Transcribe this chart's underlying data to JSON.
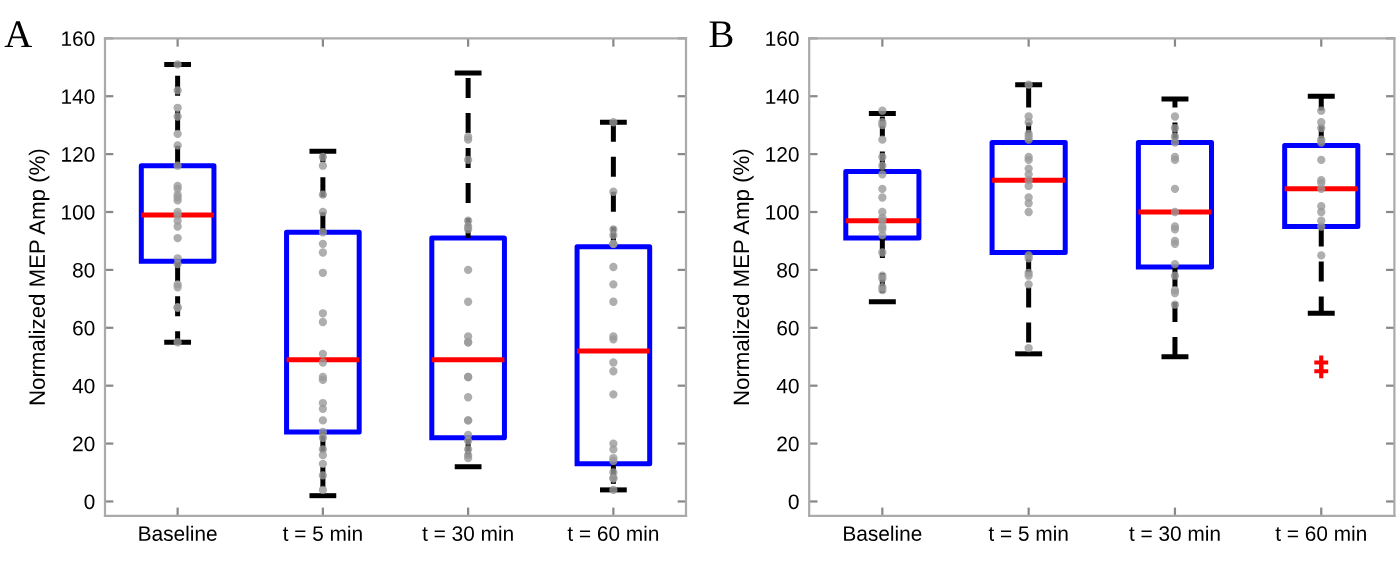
{
  "chart_data": [
    {
      "type": "box",
      "title": "A",
      "ylabel": "Normalized MEP Amp (%)",
      "categories": [
        "Baseline",
        "t = 5 min",
        "t = 30 min",
        "t = 60 min"
      ],
      "boxes": [
        {
          "low": 55,
          "q1": 83,
          "median": 99,
          "q3": 116,
          "high": 151
        },
        {
          "low": 2,
          "q1": 24,
          "median": 49,
          "q3": 93,
          "high": 121
        },
        {
          "low": 12,
          "q1": 22,
          "median": 49,
          "q3": 91,
          "high": 148
        },
        {
          "low": 4,
          "q1": 13,
          "median": 52,
          "q3": 88,
          "high": 131
        }
      ],
      "series": [
        {
          "type": "scatter",
          "color": "#9a9a9a",
          "x": [
            "Baseline",
            "Baseline",
            "Baseline",
            "Baseline",
            "Baseline",
            "Baseline",
            "Baseline",
            "Baseline",
            "Baseline",
            "Baseline",
            "Baseline",
            "Baseline",
            "Baseline",
            "Baseline",
            "Baseline",
            "Baseline",
            "Baseline",
            "Baseline",
            "Baseline",
            "Baseline",
            "Baseline",
            "Baseline",
            "Baseline",
            "Baseline",
            "t = 5 min",
            "t = 5 min",
            "t = 5 min",
            "t = 5 min",
            "t = 5 min",
            "t = 5 min",
            "t = 5 min",
            "t = 5 min",
            "t = 5 min",
            "t = 5 min",
            "t = 5 min",
            "t = 5 min",
            "t = 5 min",
            "t = 5 min",
            "t = 5 min",
            "t = 5 min",
            "t = 5 min",
            "t = 5 min",
            "t = 5 min",
            "t = 5 min",
            "t = 5 min",
            "t = 5 min",
            "t = 5 min",
            "t = 5 min",
            "t = 30 min",
            "t = 30 min",
            "t = 30 min",
            "t = 30 min",
            "t = 30 min",
            "t = 30 min",
            "t = 30 min",
            "t = 30 min",
            "t = 30 min",
            "t = 30 min",
            "t = 30 min",
            "t = 30 min",
            "t = 30 min",
            "t = 30 min",
            "t = 30 min",
            "t = 30 min",
            "t = 30 min",
            "t = 30 min",
            "t = 30 min",
            "t = 30 min",
            "t = 30 min",
            "t = 60 min",
            "t = 60 min",
            "t = 60 min",
            "t = 60 min",
            "t = 60 min",
            "t = 60 min",
            "t = 60 min",
            "t = 60 min",
            "t = 60 min",
            "t = 60 min",
            "t = 60 min",
            "t = 60 min",
            "t = 60 min",
            "t = 60 min",
            "t = 60 min",
            "t = 60 min",
            "t = 60 min",
            "t = 60 min",
            "t = 60 min",
            "t = 60 min",
            "t = 60 min",
            "t = 60 min"
          ],
          "values": [
            151,
            142,
            136,
            133,
            127,
            123,
            116,
            109,
            108,
            106,
            105,
            104,
            100,
            99,
            97,
            95,
            91,
            84,
            82,
            75,
            74,
            67,
            67,
            55,
            119,
            116,
            106,
            100,
            93,
            89,
            86,
            79,
            65,
            62,
            51,
            48,
            43,
            42,
            34,
            32,
            28,
            24,
            22,
            18,
            16,
            13,
            9,
            4,
            126,
            125,
            118,
            97,
            95,
            94,
            80,
            69,
            57,
            55,
            55,
            43,
            43,
            36,
            28,
            28,
            23,
            21,
            18,
            16,
            15,
            131,
            107,
            94,
            92,
            89,
            89,
            81,
            75,
            69,
            57,
            56,
            48,
            45,
            37,
            20,
            18,
            15,
            14,
            10,
            8,
            8,
            4
          ]
        }
      ],
      "ylim": [
        -5,
        160
      ],
      "yticks": [
        0,
        20,
        40,
        60,
        80,
        100,
        120,
        140,
        160
      ],
      "marker": "circle"
    },
    {
      "type": "box",
      "title": "B",
      "ylabel": "Normalized MEP Amp (%)",
      "categories": [
        "Baseline",
        "t = 5 min",
        "t = 30 min",
        "t = 60 min"
      ],
      "boxes": [
        {
          "low": 69,
          "q1": 91,
          "median": 97,
          "q3": 114,
          "high": 134
        },
        {
          "low": 51,
          "q1": 86,
          "median": 111,
          "q3": 124,
          "high": 144
        },
        {
          "low": 50,
          "q1": 81,
          "median": 100,
          "q3": 124,
          "high": 139
        },
        {
          "low": 65,
          "q1": 95,
          "median": 108,
          "q3": 123,
          "high": 140,
          "outliers": [
            48,
            45
          ]
        }
      ],
      "series": [
        {
          "type": "scatter",
          "color": "#9a9a9a",
          "x": [
            "Baseline",
            "Baseline",
            "Baseline",
            "Baseline",
            "Baseline",
            "Baseline",
            "Baseline",
            "Baseline",
            "Baseline",
            "Baseline",
            "Baseline",
            "Baseline",
            "Baseline",
            "Baseline",
            "Baseline",
            "Baseline",
            "Baseline",
            "Baseline",
            "Baseline",
            "Baseline",
            "t = 5 min",
            "t = 5 min",
            "t = 5 min",
            "t = 5 min",
            "t = 5 min",
            "t = 5 min",
            "t = 5 min",
            "t = 5 min",
            "t = 5 min",
            "t = 5 min",
            "t = 5 min",
            "t = 5 min",
            "t = 5 min",
            "t = 5 min",
            "t = 5 min",
            "t = 5 min",
            "t = 5 min",
            "t = 5 min",
            "t = 5 min",
            "t = 5 min",
            "t = 5 min",
            "t = 30 min",
            "t = 30 min",
            "t = 30 min",
            "t = 30 min",
            "t = 30 min",
            "t = 30 min",
            "t = 30 min",
            "t = 30 min",
            "t = 30 min",
            "t = 30 min",
            "t = 30 min",
            "t = 30 min",
            "t = 30 min",
            "t = 30 min",
            "t = 30 min",
            "t = 30 min",
            "t = 30 min",
            "t = 60 min",
            "t = 60 min",
            "t = 60 min",
            "t = 60 min",
            "t = 60 min",
            "t = 60 min",
            "t = 60 min",
            "t = 60 min",
            "t = 60 min",
            "t = 60 min",
            "t = 60 min",
            "t = 60 min",
            "t = 60 min",
            "t = 60 min"
          ],
          "values": [
            135,
            131,
            130,
            125,
            119,
            116,
            113,
            108,
            105,
            100,
            98,
            97,
            95,
            94,
            92,
            86,
            78,
            77,
            74,
            73,
            144,
            133,
            131,
            127,
            126,
            125,
            119,
            118,
            115,
            113,
            111,
            109,
            105,
            103,
            100,
            85,
            84,
            79,
            78,
            75,
            53,
            133,
            129,
            126,
            124,
            119,
            118,
            108,
            100,
            95,
            94,
            90,
            89,
            82,
            78,
            73,
            72,
            68,
            135,
            131,
            129,
            125,
            124,
            118,
            111,
            110,
            108,
            102,
            100,
            97,
            95,
            85
          ]
        }
      ],
      "ylim": [
        -5,
        160
      ],
      "yticks": [
        0,
        20,
        40,
        60,
        80,
        100,
        120,
        140,
        160
      ],
      "marker": "circle"
    }
  ]
}
